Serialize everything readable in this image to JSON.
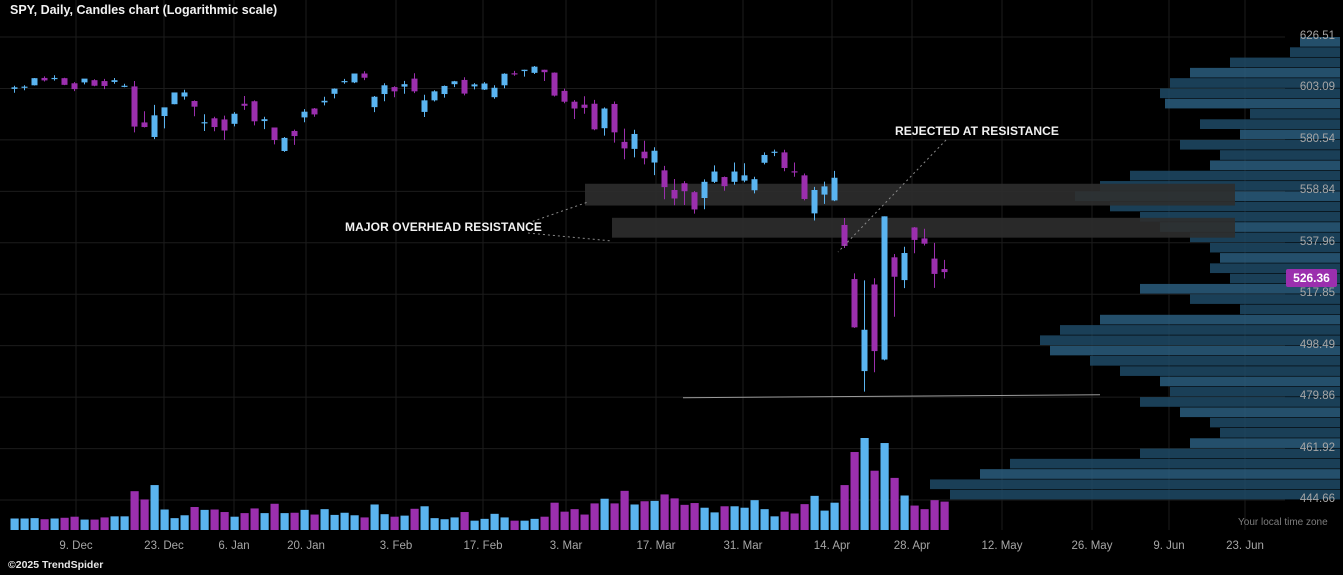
{
  "header": {
    "title": "SPY, Daily, Candles chart (Logarithmic scale)"
  },
  "footer": {
    "copyright": "©2025 TrendSpider",
    "timezone_note": "Your local time zone"
  },
  "last_price": "526.36",
  "colors": {
    "up": "#5ab4f0",
    "down": "#9b2fae",
    "grid": "#1c1c1c",
    "zone": "#2e2e2e",
    "profile": "#1e4a66",
    "profile_light": "#2a5d7e"
  },
  "annotations": {
    "major_resistance": "MAJOR OVERHEAD RESISTANCE",
    "rejected": "REJECTED AT RESISTANCE"
  },
  "chart_data": {
    "type": "candlestick",
    "scale": "logarithmic",
    "symbol": "SPY",
    "interval": "Daily",
    "y_ticks": [
      "626.51",
      "603.09",
      "580.54",
      "558.84",
      "537.96",
      "517.85",
      "498.49",
      "479.86",
      "461.92",
      "444.66"
    ],
    "x_ticks": [
      "9. Dec",
      "23. Dec",
      "6. Jan",
      "20. Jan",
      "3. Feb",
      "17. Feb",
      "3. Mar",
      "17. Mar",
      "31. Mar",
      "14. Apr",
      "28. Apr",
      "12. May",
      "26. May",
      "9. Jun",
      "23. Jun"
    ],
    "resistance_zones": [
      [
        553,
        562
      ],
      [
        540,
        548
      ]
    ],
    "support_level": 480,
    "candles": [
      {
        "d": "2024-12-02",
        "o": 602.9,
        "h": 604.3,
        "l": 601.2,
        "c": 603.6,
        "v": 32
      },
      {
        "d": "2024-12-03",
        "o": 603.4,
        "h": 604.5,
        "l": 602.3,
        "c": 603.9,
        "v": 32
      },
      {
        "d": "2024-12-04",
        "o": 604.5,
        "h": 607.8,
        "l": 604.4,
        "c": 607.7,
        "v": 33
      },
      {
        "d": "2024-12-05",
        "o": 607.8,
        "h": 608.5,
        "l": 606.2,
        "c": 606.7,
        "v": 30
      },
      {
        "d": "2024-12-06",
        "o": 607.4,
        "h": 609.0,
        "l": 606.6,
        "c": 607.8,
        "v": 32
      },
      {
        "d": "2024-12-09",
        "o": 607.7,
        "h": 607.9,
        "l": 604.6,
        "c": 604.7,
        "v": 34
      },
      {
        "d": "2024-12-10",
        "o": 605.4,
        "h": 605.9,
        "l": 601.9,
        "c": 602.8,
        "v": 37
      },
      {
        "d": "2024-12-11",
        "o": 605.8,
        "h": 607.2,
        "l": 604.9,
        "c": 607.5,
        "v": 29
      },
      {
        "d": "2024-12-12",
        "o": 606.8,
        "h": 607.2,
        "l": 604.1,
        "c": 604.3,
        "v": 29
      },
      {
        "d": "2024-12-13",
        "o": 606.4,
        "h": 607.4,
        "l": 602.8,
        "c": 604.2,
        "v": 35
      },
      {
        "d": "2024-12-16",
        "o": 606.0,
        "h": 607.8,
        "l": 605.2,
        "c": 606.8,
        "v": 38
      },
      {
        "d": "2024-12-17",
        "o": 604.2,
        "h": 605.2,
        "l": 603.6,
        "c": 604.3,
        "v": 38
      },
      {
        "d": "2024-12-18",
        "o": 604.0,
        "h": 606.4,
        "l": 583.8,
        "c": 586.3,
        "v": 108
      },
      {
        "d": "2024-12-19",
        "o": 588.1,
        "h": 593.0,
        "l": 585.9,
        "c": 586.1,
        "v": 85
      },
      {
        "d": "2024-12-20",
        "o": 581.8,
        "h": 595.8,
        "l": 580.9,
        "c": 591.2,
        "v": 125
      },
      {
        "d": "2024-12-23",
        "o": 590.9,
        "h": 594.5,
        "l": 585.5,
        "c": 594.7,
        "v": 57
      },
      {
        "d": "2024-12-24",
        "o": 596.1,
        "h": 601.3,
        "l": 596.1,
        "c": 601.3,
        "v": 33
      },
      {
        "d": "2024-12-26",
        "o": 599.5,
        "h": 602.5,
        "l": 598.1,
        "c": 601.3,
        "v": 41
      },
      {
        "d": "2024-12-27",
        "o": 597.5,
        "h": 597.8,
        "l": 590.8,
        "c": 595.0,
        "v": 64
      },
      {
        "d": "2024-12-30",
        "o": 587.9,
        "h": 591.7,
        "l": 584.4,
        "c": 588.2,
        "v": 56
      },
      {
        "d": "2024-12-31",
        "o": 589.9,
        "h": 590.6,
        "l": 584.3,
        "c": 586.1,
        "v": 57
      },
      {
        "d": "2025-01-02",
        "o": 589.4,
        "h": 591.1,
        "l": 580.5,
        "c": 584.6,
        "v": 50
      },
      {
        "d": "2025-01-03",
        "o": 587.5,
        "h": 592.6,
        "l": 586.4,
        "c": 591.9,
        "v": 37
      },
      {
        "d": "2025-01-06",
        "o": 596.3,
        "h": 599.7,
        "l": 593.6,
        "c": 595.4,
        "v": 47
      },
      {
        "d": "2025-01-07",
        "o": 597.4,
        "h": 597.8,
        "l": 586.8,
        "c": 588.6,
        "v": 60
      },
      {
        "d": "2025-01-08",
        "o": 588.7,
        "h": 590.6,
        "l": 585.2,
        "c": 589.5,
        "v": 47
      },
      {
        "d": "2025-01-10",
        "o": 585.9,
        "h": 585.9,
        "l": 578.6,
        "c": 580.5,
        "v": 73
      },
      {
        "d": "2025-01-13",
        "o": 575.8,
        "h": 581.8,
        "l": 575.4,
        "c": 581.4,
        "v": 47
      },
      {
        "d": "2025-01-14",
        "o": 584.4,
        "h": 585.0,
        "l": 578.4,
        "c": 582.2,
        "v": 48
      },
      {
        "d": "2025-01-15",
        "o": 590.3,
        "h": 593.9,
        "l": 588.2,
        "c": 592.8,
        "v": 56
      },
      {
        "d": "2025-01-16",
        "o": 594.2,
        "h": 594.4,
        "l": 590.6,
        "c": 591.6,
        "v": 43
      },
      {
        "d": "2025-01-17",
        "o": 596.9,
        "h": 599.4,
        "l": 595.6,
        "c": 597.6,
        "v": 58
      },
      {
        "d": "2025-01-21",
        "o": 600.7,
        "h": 603.1,
        "l": 598.7,
        "c": 603.0,
        "v": 42
      },
      {
        "d": "2025-01-22",
        "o": 605.9,
        "h": 607.4,
        "l": 605.2,
        "c": 606.4,
        "v": 48
      },
      {
        "d": "2025-01-23",
        "o": 605.8,
        "h": 609.8,
        "l": 605.5,
        "c": 609.8,
        "v": 41
      },
      {
        "d": "2025-01-24",
        "o": 609.8,
        "h": 610.8,
        "l": 606.8,
        "c": 607.9,
        "v": 35
      },
      {
        "d": "2025-01-27",
        "o": 594.8,
        "h": 599.7,
        "l": 592.6,
        "c": 599.4,
        "v": 71
      },
      {
        "d": "2025-01-28",
        "o": 600.6,
        "h": 605.4,
        "l": 597.4,
        "c": 604.5,
        "v": 44
      },
      {
        "d": "2025-01-29",
        "o": 603.7,
        "h": 604.1,
        "l": 599.2,
        "c": 601.8,
        "v": 37
      },
      {
        "d": "2025-01-30",
        "o": 603.9,
        "h": 606.5,
        "l": 600.7,
        "c": 605.0,
        "v": 40
      },
      {
        "d": "2025-01-31",
        "o": 607.5,
        "h": 609.9,
        "l": 601.0,
        "c": 601.8,
        "v": 59
      },
      {
        "d": "2025-02-03",
        "o": 592.7,
        "h": 600.3,
        "l": 590.5,
        "c": 597.8,
        "v": 66
      },
      {
        "d": "2025-02-04",
        "o": 597.8,
        "h": 602.3,
        "l": 597.3,
        "c": 601.8,
        "v": 33
      },
      {
        "d": "2025-02-05",
        "o": 600.6,
        "h": 604.4,
        "l": 599.0,
        "c": 604.2,
        "v": 30
      },
      {
        "d": "2025-02-06",
        "o": 605.0,
        "h": 606.5,
        "l": 603.7,
        "c": 606.3,
        "v": 35
      },
      {
        "d": "2025-02-07",
        "o": 606.9,
        "h": 608.1,
        "l": 600.0,
        "c": 600.8,
        "v": 50
      },
      {
        "d": "2025-02-10",
        "o": 604.0,
        "h": 605.5,
        "l": 602.7,
        "c": 604.9,
        "v": 26
      },
      {
        "d": "2025-02-11",
        "o": 602.6,
        "h": 605.9,
        "l": 602.4,
        "c": 605.3,
        "v": 31
      },
      {
        "d": "2025-02-12",
        "o": 599.2,
        "h": 604.5,
        "l": 598.5,
        "c": 603.4,
        "v": 45
      },
      {
        "d": "2025-02-13",
        "o": 604.5,
        "h": 609.9,
        "l": 603.2,
        "c": 609.7,
        "v": 35
      },
      {
        "d": "2025-02-14",
        "o": 609.9,
        "h": 611.0,
        "l": 608.8,
        "c": 609.7,
        "v": 26
      },
      {
        "d": "2025-02-18",
        "o": 610.9,
        "h": 611.5,
        "l": 608.4,
        "c": 611.5,
        "v": 26
      },
      {
        "d": "2025-02-19",
        "o": 610.1,
        "h": 613.2,
        "l": 609.6,
        "c": 612.9,
        "v": 31
      },
      {
        "d": "2025-02-20",
        "o": 611.5,
        "h": 611.5,
        "l": 606.4,
        "c": 610.4,
        "v": 37
      },
      {
        "d": "2025-02-21",
        "o": 610.2,
        "h": 610.3,
        "l": 599.5,
        "c": 599.9,
        "v": 76
      },
      {
        "d": "2025-02-24",
        "o": 602.0,
        "h": 603.0,
        "l": 596.5,
        "c": 597.2,
        "v": 51
      },
      {
        "d": "2025-02-25",
        "o": 597.2,
        "h": 597.9,
        "l": 589.6,
        "c": 594.2,
        "v": 58
      },
      {
        "d": "2025-02-26",
        "o": 595.9,
        "h": 599.6,
        "l": 591.9,
        "c": 594.5,
        "v": 43
      },
      {
        "d": "2025-02-27",
        "o": 596.3,
        "h": 598.0,
        "l": 584.7,
        "c": 585.1,
        "v": 74
      },
      {
        "d": "2025-02-28",
        "o": 585.6,
        "h": 594.7,
        "l": 582.4,
        "c": 594.2,
        "v": 87
      },
      {
        "d": "2025-03-03",
        "o": 596.2,
        "h": 597.3,
        "l": 579.4,
        "c": 583.8,
        "v": 74
      },
      {
        "d": "2025-03-04",
        "o": 579.7,
        "h": 585.4,
        "l": 572.3,
        "c": 576.9,
        "v": 109
      },
      {
        "d": "2025-03-05",
        "o": 576.7,
        "h": 584.9,
        "l": 573.1,
        "c": 583.1,
        "v": 71
      },
      {
        "d": "2025-03-06",
        "o": 575.5,
        "h": 580.2,
        "l": 570.1,
        "c": 572.7,
        "v": 80
      },
      {
        "d": "2025-03-07",
        "o": 570.9,
        "h": 577.4,
        "l": 565.6,
        "c": 575.9,
        "v": 81
      },
      {
        "d": "2025-03-10",
        "o": 567.6,
        "h": 569.5,
        "l": 555.6,
        "c": 560.6,
        "v": 99
      },
      {
        "d": "2025-03-11",
        "o": 559.4,
        "h": 564.0,
        "l": 553.1,
        "c": 555.9,
        "v": 88
      },
      {
        "d": "2025-03-12",
        "o": 562.2,
        "h": 563.1,
        "l": 553.2,
        "c": 558.9,
        "v": 70
      },
      {
        "d": "2025-03-13",
        "o": 558.5,
        "h": 559.0,
        "l": 549.7,
        "c": 551.4,
        "v": 75
      },
      {
        "d": "2025-03-14",
        "o": 556.1,
        "h": 563.8,
        "l": 551.5,
        "c": 562.8,
        "v": 62
      },
      {
        "d": "2025-03-17",
        "o": 562.8,
        "h": 569.7,
        "l": 562.3,
        "c": 567.1,
        "v": 49
      },
      {
        "d": "2025-03-18",
        "o": 564.8,
        "h": 565.0,
        "l": 559.1,
        "c": 561.0,
        "v": 66
      },
      {
        "d": "2025-03-19",
        "o": 562.8,
        "h": 570.9,
        "l": 561.6,
        "c": 567.1,
        "v": 66
      },
      {
        "d": "2025-03-20",
        "o": 563.3,
        "h": 570.6,
        "l": 562.6,
        "c": 565.5,
        "v": 62
      },
      {
        "d": "2025-03-21",
        "o": 559.3,
        "h": 564.9,
        "l": 558.0,
        "c": 563.9,
        "v": 83
      },
      {
        "d": "2025-03-24",
        "o": 570.8,
        "h": 575.2,
        "l": 570.1,
        "c": 574.1,
        "v": 58
      },
      {
        "d": "2025-03-25",
        "o": 575.3,
        "h": 576.4,
        "l": 573.6,
        "c": 575.5,
        "v": 38
      },
      {
        "d": "2025-03-26",
        "o": 575.2,
        "h": 576.3,
        "l": 567.2,
        "c": 568.6,
        "v": 51
      },
      {
        "d": "2025-03-27",
        "o": 567.2,
        "h": 570.9,
        "l": 564.9,
        "c": 567.1,
        "v": 46
      },
      {
        "d": "2025-03-28",
        "o": 565.5,
        "h": 566.3,
        "l": 555.1,
        "c": 555.7,
        "v": 72
      },
      {
        "d": "2025-03-31",
        "o": 549.8,
        "h": 560.7,
        "l": 546.9,
        "c": 559.4,
        "v": 95
      },
      {
        "d": "2025-04-01",
        "o": 557.5,
        "h": 562.9,
        "l": 553.7,
        "c": 560.9,
        "v": 54
      },
      {
        "d": "2025-04-02",
        "o": 555.1,
        "h": 567.4,
        "l": 554.8,
        "c": 564.5,
        "v": 76
      },
      {
        "d": "2025-04-03",
        "o": 545.1,
        "h": 547.9,
        "l": 535.9,
        "c": 536.7,
        "v": 125
      },
      {
        "d": "2025-04-04",
        "o": 523.7,
        "h": 525.9,
        "l": 505.1,
        "c": 505.3,
        "v": 217
      },
      {
        "d": "2025-04-07",
        "o": 489.2,
        "h": 523.2,
        "l": 481.8,
        "c": 504.4,
        "v": 256
      },
      {
        "d": "2025-04-08",
        "o": 521.6,
        "h": 524.0,
        "l": 488.8,
        "c": 496.5,
        "v": 165
      },
      {
        "d": "2025-04-09",
        "o": 493.4,
        "h": 548.6,
        "l": 493.1,
        "c": 548.6,
        "v": 242
      },
      {
        "d": "2025-04-10",
        "o": 532.2,
        "h": 533.5,
        "l": 509.3,
        "c": 524.6,
        "v": 145
      },
      {
        "d": "2025-04-11",
        "o": 523.3,
        "h": 536.4,
        "l": 520.2,
        "c": 533.9,
        "v": 96
      },
      {
        "d": "2025-04-14",
        "o": 544.1,
        "h": 544.3,
        "l": 533.8,
        "c": 539.1,
        "v": 68
      },
      {
        "d": "2025-04-15",
        "o": 539.7,
        "h": 543.6,
        "l": 536.9,
        "c": 537.6,
        "v": 58
      },
      {
        "d": "2025-04-16",
        "o": 531.7,
        "h": 537.9,
        "l": 520.3,
        "c": 525.7,
        "v": 83
      },
      {
        "d": "2025-04-17",
        "o": 527.6,
        "h": 531.2,
        "l": 523.9,
        "c": 526.4,
        "v": 79
      }
    ],
    "volume_profile": [
      [
        626.51,
        1287
      ],
      [
        603.09,
        1181
      ],
      [
        580.54,
        1158
      ],
      [
        558.84,
        1078
      ],
      [
        537.96,
        1102
      ],
      [
        517.85,
        1007
      ],
      [
        498.49,
        1125
      ],
      [
        479.86,
        1240
      ],
      [
        461.92,
        1215
      ],
      [
        444.66,
        930
      ]
    ]
  }
}
